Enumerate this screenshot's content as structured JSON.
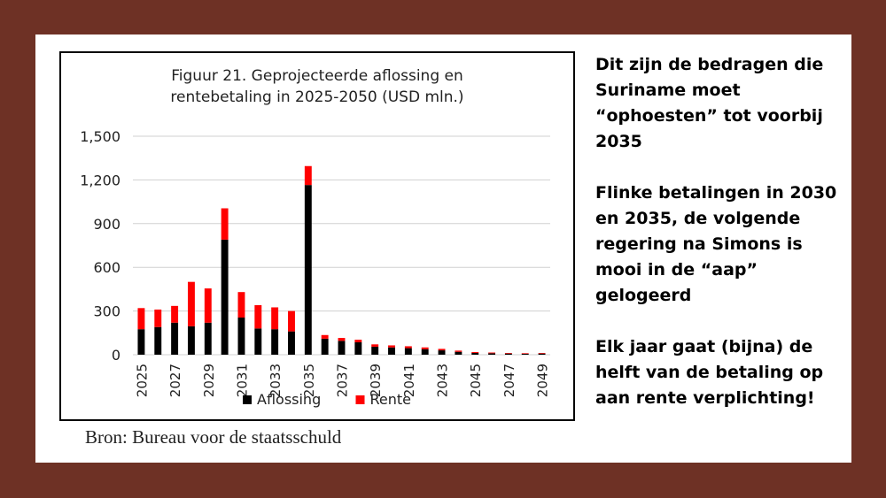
{
  "chart_data": {
    "type": "bar",
    "stacked": true,
    "title": "Figuur 21. Geprojecteerde aflossing en rentebetaling in 2025-2050 (USD mln.)",
    "title_lines": [
      "Figuur 21. Geprojecteerde aflossing en",
      "rentebetaling in 2025-2050 (USD mln.)"
    ],
    "categories": [
      "2025",
      "2026",
      "2027",
      "2028",
      "2029",
      "2030",
      "2031",
      "2032",
      "2033",
      "2034",
      "2035",
      "2036",
      "2037",
      "2038",
      "2039",
      "2040",
      "2041",
      "2042",
      "2043",
      "2044",
      "2045",
      "2046",
      "2047",
      "2048",
      "2049"
    ],
    "tick_labels": [
      "2025",
      "2027",
      "2029",
      "2031",
      "2033",
      "2035",
      "2037",
      "2039",
      "2041",
      "2043",
      "2045",
      "2047",
      "2049"
    ],
    "y_ticks": [
      "0",
      "300",
      "600",
      "900",
      "1,200",
      "1,500"
    ],
    "ylim": [
      0,
      1500
    ],
    "grid": true,
    "legend_position": "bottom",
    "series": [
      {
        "name": "Aflossing",
        "color": "#000000",
        "values": [
          175,
          190,
          220,
          195,
          220,
          790,
          255,
          180,
          175,
          160,
          1165,
          110,
          95,
          85,
          55,
          50,
          45,
          38,
          30,
          20,
          12,
          10,
          8,
          6,
          8
        ]
      },
      {
        "name": "Rente",
        "color": "#ff0000",
        "values": [
          145,
          120,
          115,
          305,
          235,
          215,
          175,
          160,
          150,
          140,
          130,
          25,
          20,
          18,
          16,
          14,
          13,
          12,
          10,
          8,
          6,
          5,
          4,
          4,
          4
        ]
      }
    ]
  },
  "source": "Bron: Bureau voor de staatsschuld",
  "notes": {
    "p1": "Dit zijn de bedragen die Suriname moet “ophoesten” tot voorbij 2035",
    "p2": "Flinke betalingen in 2030 en 2035, de volgende  regering na Simons is mooi in de “aap” gelogeerd",
    "p3": "Elk jaar gaat (bijna) de helft van de betaling op aan rente verplichting!"
  }
}
